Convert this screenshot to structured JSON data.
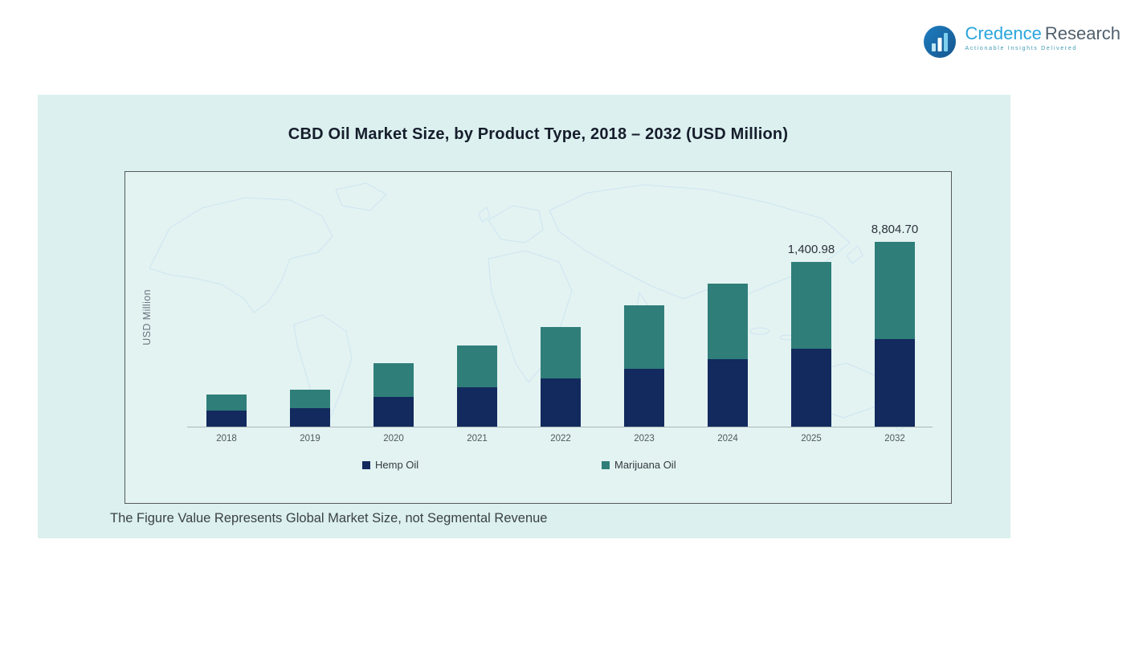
{
  "logo": {
    "brand_primary": "Credence",
    "brand_secondary": "Research",
    "tagline": "Actionable Insights Delivered"
  },
  "chart_data": {
    "type": "bar",
    "stacked": true,
    "title": "CBD Oil Market Size, by Product Type, 2018 – 2032 (USD Million)",
    "ylabel": "USD Million",
    "xlabel": "",
    "footnote": "The Figure Value Represents Global Market Size, not Segmental Revenue",
    "categories": [
      "2018",
      "2019",
      "2020",
      "2021",
      "2022",
      "2023",
      "2024",
      "2025",
      "2032"
    ],
    "series": [
      {
        "name": "Hemp Oil",
        "color": "#132a5e",
        "values_visual": [
          20,
          23,
          37,
          49,
          60,
          72,
          84,
          97,
          109
        ]
      },
      {
        "name": "Marijuana Oil",
        "color": "#2f7e79",
        "values_visual": [
          20,
          23,
          42,
          52,
          64,
          79,
          94,
          108,
          121
        ]
      }
    ],
    "bar_total_labels": [
      "",
      "",
      "",
      "",
      "",
      "",
      "",
      "1,400.98",
      "8,804.70"
    ],
    "labeled_totals": [
      {
        "category": "2025",
        "value": 1400.98
      },
      {
        "category": "2032",
        "value": 8804.7
      }
    ],
    "unit": "USD Million",
    "gridlines": false,
    "y_ticks_visible": false,
    "legend_position": "bottom-inside"
  }
}
